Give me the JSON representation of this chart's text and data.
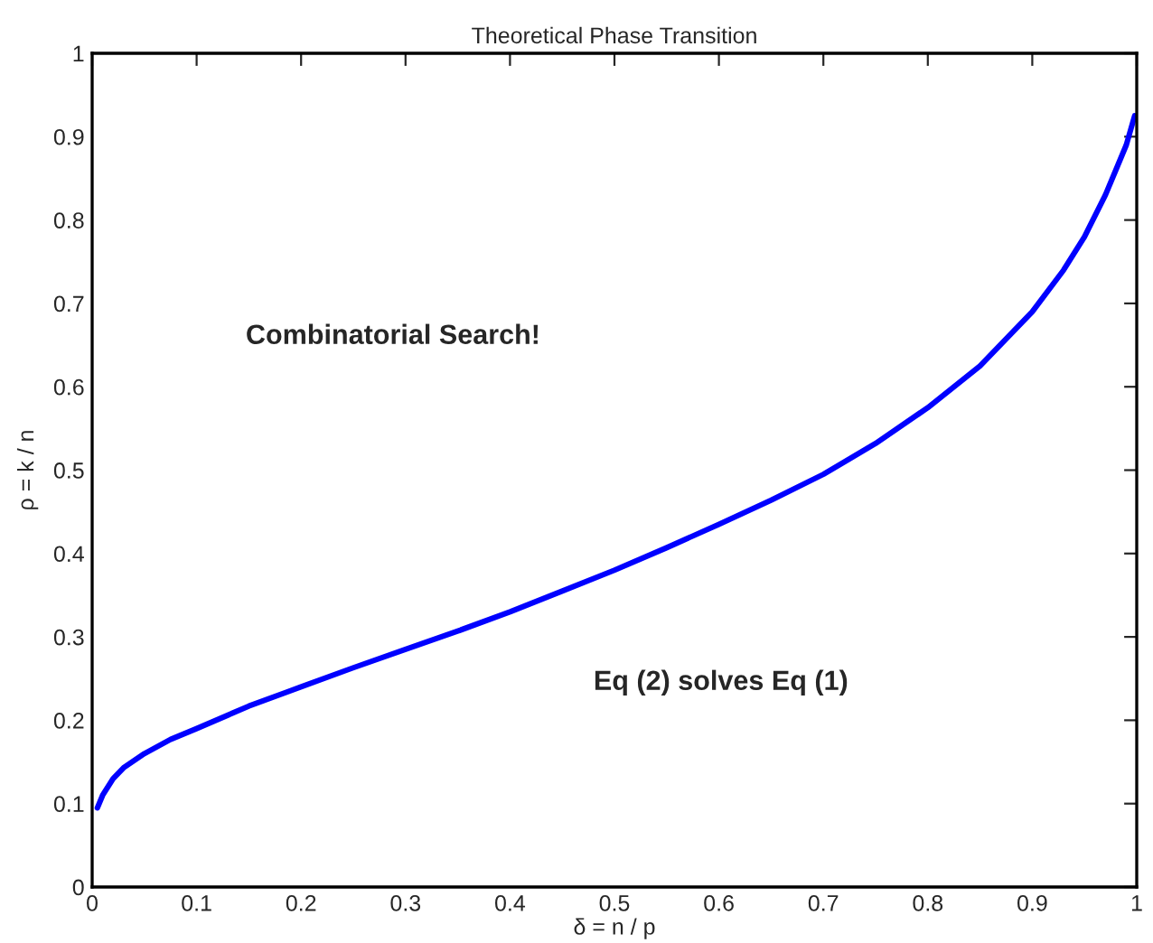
{
  "chart_data": {
    "type": "line",
    "title": "Theoretical Phase Transition",
    "xlabel": "δ = n / p",
    "ylabel": "ρ = k / n",
    "x": [
      0.005,
      0.01,
      0.02,
      0.03,
      0.05,
      0.075,
      0.1,
      0.15,
      0.2,
      0.25,
      0.3,
      0.35,
      0.4,
      0.45,
      0.5,
      0.55,
      0.6,
      0.65,
      0.7,
      0.75,
      0.8,
      0.85,
      0.9,
      0.93,
      0.95,
      0.97,
      0.98,
      0.99,
      0.998
    ],
    "series": [
      {
        "color": "#0000ff",
        "values": [
          0.095,
          0.11,
          0.13,
          0.143,
          0.16,
          0.177,
          0.19,
          0.217,
          0.24,
          0.263,
          0.285,
          0.307,
          0.33,
          0.355,
          0.38,
          0.407,
          0.435,
          0.464,
          0.495,
          0.532,
          0.575,
          0.625,
          0.69,
          0.74,
          0.78,
          0.83,
          0.86,
          0.89,
          0.925
        ]
      }
    ],
    "xlim": [
      0,
      1
    ],
    "ylim": [
      0,
      1
    ],
    "xticks": [
      0,
      0.1,
      0.2,
      0.3,
      0.4,
      0.5,
      0.6,
      0.7,
      0.8,
      0.9,
      1
    ],
    "yticks": [
      0,
      0.1,
      0.2,
      0.3,
      0.4,
      0.5,
      0.6,
      0.7,
      0.8,
      0.9,
      1
    ],
    "grid": false,
    "legend": false,
    "marker": "none",
    "line_style": "solid",
    "annotations": [
      "Combinatorial Search!",
      "Eq (2) solves Eq (1)"
    ]
  }
}
